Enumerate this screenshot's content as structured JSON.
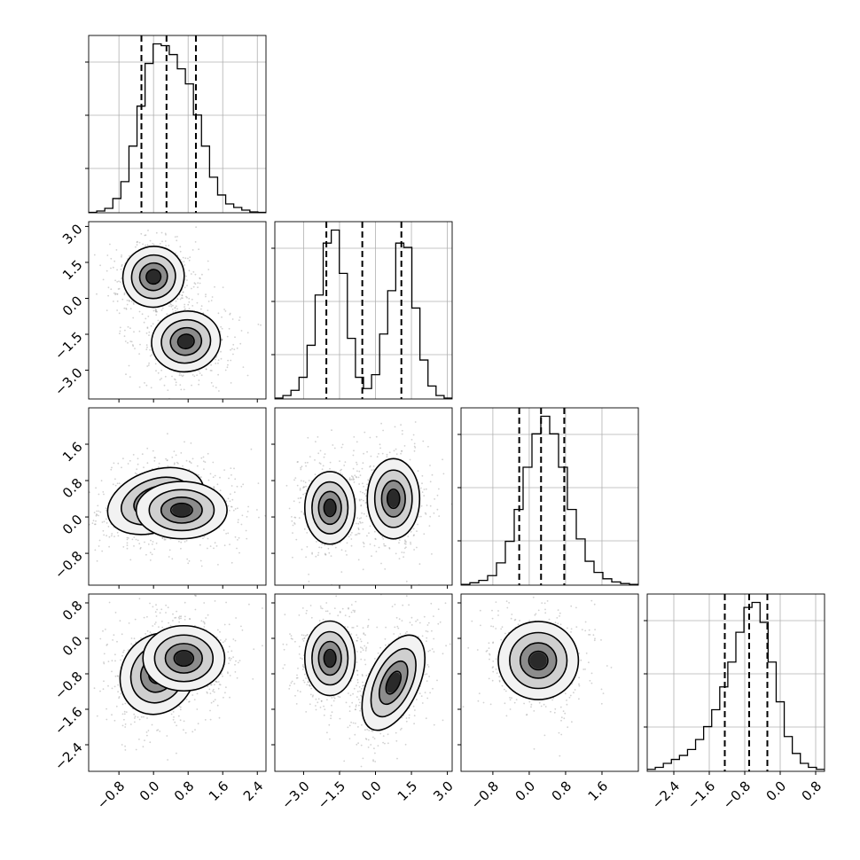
{
  "chart_data": {
    "type": "corner",
    "title": "",
    "parameters": [
      {
        "index": 0,
        "range": [
          -1.5,
          2.6
        ],
        "ticks": [
          -0.8,
          0.0,
          0.8,
          1.6,
          2.4
        ],
        "tick_labels": [
          "−0.8",
          "0.0",
          "0.8",
          "1.6",
          "2.4"
        ],
        "quantiles": [
          -0.28,
          0.3,
          0.98
        ]
      },
      {
        "index": 1,
        "range": [
          -4.2,
          3.2
        ],
        "ticks": [
          -3.0,
          -1.5,
          0.0,
          1.5,
          3.0
        ],
        "tick_labels": [
          "−3.0",
          "−1.5",
          "0.0",
          "1.5",
          "3.0"
        ],
        "quantiles": [
          -2.05,
          -0.55,
          1.08
        ]
      },
      {
        "index": 2,
        "range": [
          -1.5,
          2.4
        ],
        "ticks": [
          -0.8,
          0.0,
          0.8,
          1.6
        ],
        "tick_labels": [
          "−0.8",
          "0.0",
          "0.8",
          "1.6"
        ],
        "quantiles": [
          -0.22,
          0.26,
          0.77
        ]
      },
      {
        "index": 3,
        "range": [
          -3.0,
          1.0
        ],
        "ticks": [
          -2.4,
          -1.6,
          -0.8,
          0.0,
          0.8
        ],
        "tick_labels": [
          "−2.4",
          "−1.6",
          "−0.8",
          "0.0",
          "0.8"
        ],
        "quantiles": [
          -1.25,
          -0.7,
          -0.29
        ]
      }
    ],
    "histograms": [
      {
        "param": 0,
        "counts": [
          0.5,
          2,
          5,
          16,
          35,
          75,
          120,
          168,
          190,
          188,
          178,
          162,
          145,
          110,
          75,
          40,
          20,
          10,
          6,
          3,
          1,
          0.5
        ]
      },
      {
        "param": 1,
        "counts": [
          1,
          4,
          10,
          25,
          62,
          120,
          180,
          195,
          145,
          70,
          25,
          12,
          28,
          75,
          125,
          180,
          175,
          105,
          45,
          15,
          4,
          1
        ]
      },
      {
        "param": 2,
        "counts": [
          1,
          3,
          6,
          12,
          28,
          55,
          95,
          148,
          190,
          212,
          190,
          148,
          95,
          58,
          30,
          16,
          8,
          4,
          2,
          1
        ]
      },
      {
        "param": 3,
        "counts": [
          2,
          4,
          8,
          12,
          16,
          22,
          32,
          45,
          62,
          85,
          110,
          140,
          165,
          170,
          150,
          110,
          70,
          35,
          18,
          8,
          4,
          2
        ]
      }
    ],
    "joint": [
      {
        "x": 0,
        "y": 1,
        "modes": [
          {
            "cx": 0.0,
            "cy": 0.9,
            "sx": 0.34,
            "sy": 0.6,
            "rot": -35
          },
          {
            "cx": 0.75,
            "cy": -1.8,
            "sx": 0.38,
            "sy": 0.6,
            "rot": -10
          }
        ]
      },
      {
        "x": 0,
        "y": 2,
        "modes": [
          {
            "cx": 0.05,
            "cy": 0.35,
            "sx": 0.55,
            "sy": 0.32,
            "rot": -20
          },
          {
            "cx": 0.65,
            "cy": 0.15,
            "sx": 0.5,
            "sy": 0.3,
            "rot": 0
          }
        ]
      },
      {
        "x": 1,
        "y": 2,
        "modes": [
          {
            "cx": -1.9,
            "cy": 0.2,
            "sx": 0.5,
            "sy": 0.38,
            "rot": 0
          },
          {
            "cx": 0.75,
            "cy": 0.4,
            "sx": 0.52,
            "sy": 0.42,
            "rot": 0
          }
        ]
      },
      {
        "x": 0,
        "y": 3,
        "modes": [
          {
            "cx": 0.1,
            "cy": -0.8,
            "sx": 0.4,
            "sy": 0.45,
            "rot": 30
          },
          {
            "cx": 0.7,
            "cy": -0.45,
            "sx": 0.45,
            "sy": 0.35,
            "rot": 0
          }
        ]
      },
      {
        "x": 1,
        "y": 3,
        "modes": [
          {
            "cx": -1.9,
            "cy": -0.45,
            "sx": 0.5,
            "sy": 0.4,
            "rot": 0
          },
          {
            "cx": 0.75,
            "cy": -1.0,
            "sx": 0.5,
            "sy": 0.55,
            "rot": 25
          }
        ]
      },
      {
        "x": 2,
        "y": 3,
        "modes": [
          {
            "cx": 0.2,
            "cy": -0.5,
            "sx": 0.42,
            "sy": 0.42,
            "rot": 0
          }
        ]
      }
    ],
    "colors": {
      "contour": "#000000",
      "hist": "#000000",
      "density": "#000000",
      "points": "#9a9a9a"
    },
    "grid": true
  }
}
